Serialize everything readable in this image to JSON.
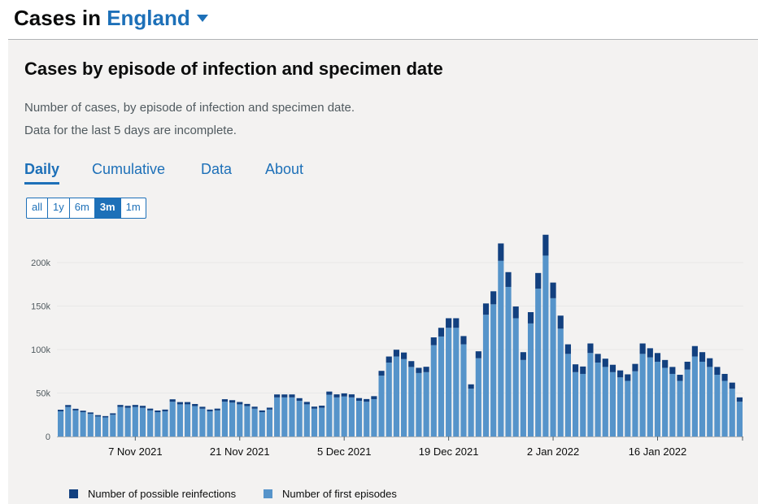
{
  "header": {
    "prefix": "Cases in",
    "area": "England"
  },
  "card": {
    "title": "Cases by episode of infection and specimen date",
    "desc1": "Number of cases, by episode of infection and specimen date.",
    "desc2": "Data for the last 5 days are incomplete."
  },
  "tabs": [
    "Daily",
    "Cumulative",
    "Data",
    "About"
  ],
  "ranges": [
    "all",
    "1y",
    "6m",
    "3m",
    "1m"
  ],
  "selected_range": "3m",
  "colors": {
    "reinfection": "#12407f",
    "first": "#5694ca",
    "grid": "#e8e8e8",
    "axis": "#b1b4b6"
  },
  "chart_data": {
    "type": "bar",
    "stacked": true,
    "x_start": "2021-10-28",
    "x_ticks": [
      "7 Nov 2021",
      "21 Nov 2021",
      "5 Dec 2021",
      "19 Dec 2021",
      "2 Jan 2022",
      "16 Jan 2022"
    ],
    "y_ticks": [
      "0",
      "50k",
      "100k",
      "150k",
      "200k"
    ],
    "ylim": [
      0,
      240000
    ],
    "grid": true,
    "legend_position": "bottom",
    "series": [
      {
        "name": "Number of first episodes",
        "values": [
          29000,
          34000,
          30000,
          28000,
          26000,
          23000,
          22000,
          25000,
          34000,
          33000,
          34000,
          33000,
          30000,
          28000,
          29000,
          40000,
          37000,
          37000,
          35000,
          32000,
          29000,
          30000,
          40000,
          39000,
          37000,
          35000,
          32000,
          28000,
          31000,
          45000,
          45000,
          45000,
          41000,
          37000,
          32000,
          33000,
          48000,
          45000,
          46000,
          45000,
          41000,
          40000,
          43000,
          70000,
          85000,
          92000,
          89000,
          80000,
          73000,
          74000,
          105000,
          115000,
          125000,
          125000,
          106000,
          55000,
          90000,
          140000,
          152000,
          202000,
          172000,
          136000,
          88000,
          130000,
          170000,
          208000,
          159000,
          124000,
          95000,
          74000,
          72000,
          96000,
          85000,
          80000,
          74000,
          68000,
          64000,
          75000,
          95000,
          91000,
          86000,
          79000,
          72000,
          64000,
          77000,
          92000,
          86000,
          80000,
          71000,
          64000,
          55000,
          40000
        ]
      },
      {
        "name": "Number of possible reinfections",
        "values": [
          1800,
          2200,
          1900,
          1700,
          1700,
          1600,
          1500,
          1700,
          2300,
          2300,
          2300,
          2300,
          2100,
          1900,
          2000,
          2800,
          2600,
          2600,
          2400,
          2200,
          2000,
          2100,
          2900,
          2800,
          2700,
          2500,
          2300,
          2000,
          2200,
          3400,
          3400,
          3400,
          3100,
          2800,
          2400,
          2500,
          3700,
          3500,
          3600,
          3500,
          3200,
          3100,
          3400,
          5500,
          7000,
          7800,
          7600,
          6700,
          6000,
          6200,
          9000,
          10000,
          11000,
          11000,
          9500,
          5000,
          8000,
          13000,
          15000,
          20000,
          17000,
          13500,
          9000,
          13000,
          18000,
          24000,
          18000,
          15000,
          11000,
          9000,
          8500,
          11000,
          10000,
          9500,
          8500,
          8000,
          7500,
          8500,
          12000,
          10500,
          10000,
          9000,
          8000,
          7000,
          9000,
          12000,
          11000,
          10000,
          9000,
          8000,
          7000,
          5000
        ]
      }
    ]
  },
  "legend": [
    "Number of possible reinfections",
    "Number of first episodes"
  ]
}
